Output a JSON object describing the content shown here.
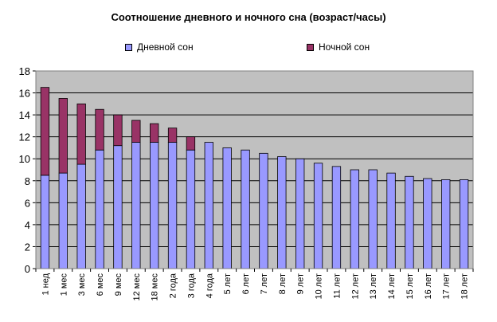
{
  "chart_data": {
    "type": "bar",
    "stacked": true,
    "title": "Соотношение дневного и ночного сна (возраст/часы)",
    "categories": [
      "1 нед",
      "1 мес",
      "3 мес",
      "6 мес",
      "9 мес",
      "12 мес",
      "18 мес",
      "2 года",
      "3 года",
      "4 года",
      "5 лет",
      "6 лет",
      "7 лет",
      "8 лет",
      "9 лет",
      "10 лет",
      "11 лет",
      "12 лет",
      "13 лет",
      "14 лет",
      "15 лет",
      "16 лет",
      "17 лет",
      "18 лет"
    ],
    "series": [
      {
        "name": "Дневной сон",
        "color": "#9999ff",
        "values": [
          8.5,
          8.7,
          9.5,
          10.8,
          11.2,
          11.5,
          11.5,
          11.5,
          10.8,
          11.5,
          11.0,
          10.8,
          10.5,
          10.2,
          10.0,
          9.6,
          9.3,
          9.0,
          9.0,
          8.7,
          8.4,
          8.2,
          8.1,
          8.1
        ]
      },
      {
        "name": "Ночной сон",
        "color": "#993366",
        "values": [
          8.0,
          6.8,
          5.5,
          3.7,
          2.8,
          2.0,
          1.7,
          1.3,
          1.2,
          0,
          0,
          0,
          0,
          0,
          0,
          0,
          0,
          0,
          0,
          0,
          0,
          0,
          0,
          0
        ]
      }
    ],
    "ylim": [
      0,
      18
    ],
    "yticks": [
      "0",
      "2",
      "4",
      "6",
      "8",
      "10",
      "12",
      "14",
      "16",
      "18"
    ],
    "grid": true,
    "legend_position": "top"
  },
  "colors": {
    "plot_background": "#c0c0c0",
    "bar_border": "#000000"
  }
}
